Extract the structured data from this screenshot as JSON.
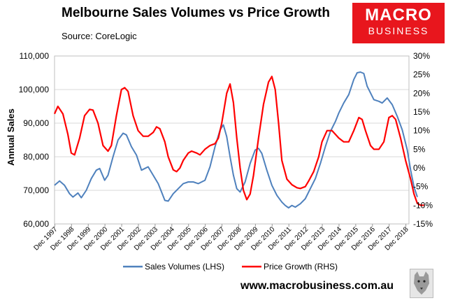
{
  "header": {
    "title": "Melbourne Sales Volumes vs Price Growth",
    "source": "Source: CoreLogic"
  },
  "logo": {
    "line1": "MACRO",
    "line2": "BUSINESS",
    "color": "#e8161d"
  },
  "footer": {
    "url": "www.macrobusiness.com.au",
    "mascot_icon": "wolf-icon"
  },
  "chart_data": {
    "type": "line",
    "title": "Melbourne Sales Volumes vs Price Growth",
    "ylabel": "Annual Sales",
    "ylim": [
      60000,
      110000
    ],
    "y_ticks": [
      "60,000",
      "70,000",
      "80,000",
      "90,000",
      "100,000",
      "110,000"
    ],
    "y2lim": [
      -15,
      30
    ],
    "y2_ticks": [
      "-15%",
      "-10%",
      "-5%",
      "0%",
      "5%",
      "10%",
      "15%",
      "20%",
      "25%",
      "30%"
    ],
    "x_ticks": [
      "Dec 1997",
      "Dec 1998",
      "Dec 1999",
      "Dec 2000",
      "Dec 2001",
      "Dec 2002",
      "Dec 2003",
      "Dec 2004",
      "Dec 2005",
      "Dec 2006",
      "Dec 2007",
      "Dec 2008",
      "Dec 2009",
      "Dec 2010",
      "Dec 2011",
      "Dec 2012",
      "Dec 2013",
      "Dec 2014",
      "Dec 2015",
      "Dec 2016",
      "Dec 2017",
      "Dec 2018"
    ],
    "x_range": [
      1997.9,
      2019.1
    ],
    "grid": true,
    "legend_position": "bottom",
    "series": [
      {
        "name": "Sales Volumes (LHS)",
        "axis": "left",
        "color": "#4f81bd",
        "points": [
          [
            1997.9,
            71500
          ],
          [
            1998.2,
            72800
          ],
          [
            1998.5,
            71500
          ],
          [
            1998.8,
            69000
          ],
          [
            1999.0,
            68000
          ],
          [
            1999.3,
            69200
          ],
          [
            1999.5,
            67800
          ],
          [
            1999.8,
            70000
          ],
          [
            2000.1,
            73500
          ],
          [
            2000.4,
            76000
          ],
          [
            2000.6,
            76500
          ],
          [
            2000.9,
            73000
          ],
          [
            2001.1,
            74500
          ],
          [
            2001.4,
            80000
          ],
          [
            2001.7,
            85000
          ],
          [
            2002.0,
            87000
          ],
          [
            2002.2,
            86500
          ],
          [
            2002.5,
            83000
          ],
          [
            2002.8,
            80500
          ],
          [
            2003.1,
            76000
          ],
          [
            2003.3,
            76500
          ],
          [
            2003.5,
            77000
          ],
          [
            2003.8,
            74500
          ],
          [
            2004.1,
            72000
          ],
          [
            2004.3,
            69500
          ],
          [
            2004.5,
            67000
          ],
          [
            2004.7,
            66800
          ],
          [
            2005.0,
            69000
          ],
          [
            2005.3,
            70500
          ],
          [
            2005.6,
            72000
          ],
          [
            2005.9,
            72500
          ],
          [
            2006.2,
            72500
          ],
          [
            2006.5,
            72000
          ],
          [
            2006.9,
            73000
          ],
          [
            2007.2,
            77000
          ],
          [
            2007.5,
            83000
          ],
          [
            2007.8,
            88000
          ],
          [
            2008.0,
            89500
          ],
          [
            2008.2,
            86000
          ],
          [
            2008.4,
            80000
          ],
          [
            2008.6,
            74500
          ],
          [
            2008.8,
            70500
          ],
          [
            2009.0,
            69500
          ],
          [
            2009.3,
            72500
          ],
          [
            2009.6,
            78000
          ],
          [
            2009.9,
            82000
          ],
          [
            2010.1,
            82500
          ],
          [
            2010.3,
            81000
          ],
          [
            2010.6,
            76000
          ],
          [
            2010.9,
            71500
          ],
          [
            2011.2,
            68500
          ],
          [
            2011.5,
            66500
          ],
          [
            2011.7,
            65500
          ],
          [
            2011.9,
            64800
          ],
          [
            2012.1,
            65500
          ],
          [
            2012.3,
            65000
          ],
          [
            2012.6,
            66000
          ],
          [
            2012.9,
            67500
          ],
          [
            2013.2,
            70500
          ],
          [
            2013.5,
            73500
          ],
          [
            2013.8,
            78000
          ],
          [
            2014.1,
            83000
          ],
          [
            2014.4,
            87500
          ],
          [
            2014.7,
            90500
          ],
          [
            2014.9,
            93000
          ],
          [
            2015.2,
            96000
          ],
          [
            2015.5,
            98500
          ],
          [
            2015.8,
            103000
          ],
          [
            2016.0,
            105000
          ],
          [
            2016.2,
            105200
          ],
          [
            2016.4,
            104800
          ],
          [
            2016.6,
            101000
          ],
          [
            2016.8,
            99000
          ],
          [
            2017.0,
            97000
          ],
          [
            2017.3,
            96500
          ],
          [
            2017.5,
            96000
          ],
          [
            2017.8,
            97500
          ],
          [
            2018.1,
            95500
          ],
          [
            2018.4,
            92000
          ],
          [
            2018.7,
            88000
          ],
          [
            2019.0,
            82000
          ],
          [
            2019.2,
            76000
          ],
          [
            2019.4,
            71000
          ],
          [
            2019.6,
            68000
          ]
        ]
      },
      {
        "name": "Price Growth (RHS)",
        "axis": "right",
        "color": "#ff0000",
        "points": [
          [
            1997.9,
            14.5
          ],
          [
            1998.1,
            16.5
          ],
          [
            1998.4,
            14.5
          ],
          [
            1998.7,
            9.0
          ],
          [
            1998.9,
            4.0
          ],
          [
            1999.1,
            3.5
          ],
          [
            1999.4,
            8.0
          ],
          [
            1999.7,
            14.0
          ],
          [
            2000.0,
            15.7
          ],
          [
            2000.2,
            15.5
          ],
          [
            2000.5,
            12.0
          ],
          [
            2000.8,
            6.0
          ],
          [
            2001.1,
            4.5
          ],
          [
            2001.3,
            6.0
          ],
          [
            2001.6,
            14.0
          ],
          [
            2001.9,
            21.0
          ],
          [
            2002.1,
            21.5
          ],
          [
            2002.3,
            20.5
          ],
          [
            2002.6,
            14.0
          ],
          [
            2002.9,
            10.0
          ],
          [
            2003.2,
            8.5
          ],
          [
            2003.5,
            8.5
          ],
          [
            2003.8,
            9.5
          ],
          [
            2004.0,
            11.0
          ],
          [
            2004.2,
            10.5
          ],
          [
            2004.5,
            7.0
          ],
          [
            2004.7,
            3.0
          ],
          [
            2005.0,
            -0.5
          ],
          [
            2005.2,
            -1.0
          ],
          [
            2005.4,
            0.0
          ],
          [
            2005.6,
            2.0
          ],
          [
            2005.9,
            4.0
          ],
          [
            2006.1,
            4.5
          ],
          [
            2006.4,
            4.0
          ],
          [
            2006.6,
            3.5
          ],
          [
            2006.9,
            5.0
          ],
          [
            2007.2,
            6.0
          ],
          [
            2007.5,
            6.5
          ],
          [
            2007.7,
            8.0
          ],
          [
            2007.9,
            12.0
          ],
          [
            2008.2,
            20.0
          ],
          [
            2008.4,
            22.5
          ],
          [
            2008.6,
            17.5
          ],
          [
            2008.8,
            8.0
          ],
          [
            2009.0,
            0.0
          ],
          [
            2009.2,
            -6.0
          ],
          [
            2009.4,
            -8.5
          ],
          [
            2009.6,
            -7.0
          ],
          [
            2009.8,
            -2.0
          ],
          [
            2010.1,
            8.0
          ],
          [
            2010.4,
            17.0
          ],
          [
            2010.7,
            23.0
          ],
          [
            2010.9,
            24.5
          ],
          [
            2011.1,
            21.0
          ],
          [
            2011.3,
            12.0
          ],
          [
            2011.5,
            2.0
          ],
          [
            2011.8,
            -3.0
          ],
          [
            2012.1,
            -4.5
          ],
          [
            2012.4,
            -5.3
          ],
          [
            2012.6,
            -5.5
          ],
          [
            2012.9,
            -5.0
          ],
          [
            2013.1,
            -3.5
          ],
          [
            2013.4,
            -1.0
          ],
          [
            2013.7,
            3.0
          ],
          [
            2013.9,
            7.0
          ],
          [
            2014.2,
            10.0
          ],
          [
            2014.5,
            10.0
          ],
          [
            2014.7,
            9.0
          ],
          [
            2014.9,
            8.0
          ],
          [
            2015.2,
            7.0
          ],
          [
            2015.5,
            7.0
          ],
          [
            2015.8,
            10.0
          ],
          [
            2016.1,
            13.5
          ],
          [
            2016.3,
            13.0
          ],
          [
            2016.5,
            10.0
          ],
          [
            2016.8,
            6.0
          ],
          [
            2017.0,
            5.0
          ],
          [
            2017.3,
            5.0
          ],
          [
            2017.6,
            7.0
          ],
          [
            2017.9,
            13.5
          ],
          [
            2018.1,
            14.0
          ],
          [
            2018.3,
            13.0
          ],
          [
            2018.6,
            8.0
          ],
          [
            2018.9,
            2.0
          ],
          [
            2019.2,
            -3.0
          ],
          [
            2019.4,
            -7.0
          ],
          [
            2019.6,
            -9.5
          ],
          [
            2019.8,
            -10.0
          ],
          [
            2020.0,
            -10.0
          ]
        ]
      }
    ]
  }
}
